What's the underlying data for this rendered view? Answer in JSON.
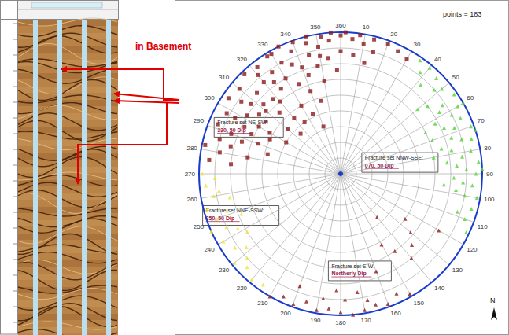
{
  "chart_data": {
    "type": "polar_scatter",
    "points_text": "points = 183",
    "north_label": "N",
    "xlim": [
      0,
      360
    ],
    "xticks": [
      10,
      20,
      30,
      40,
      50,
      60,
      70,
      80,
      90,
      100,
      110,
      120,
      130,
      140,
      150,
      160,
      170,
      180,
      190,
      200,
      210,
      220,
      230,
      240,
      250,
      260,
      270,
      280,
      290,
      300,
      310,
      320,
      330,
      340,
      350,
      360
    ],
    "ylim": [
      0,
      90
    ],
    "yticks": [
      0,
      10,
      20,
      30,
      40,
      50,
      60,
      70,
      80,
      90
    ],
    "grid": true,
    "tick_labels": "x",
    "series": [
      {
        "name": "Fracture set NE-SW:",
        "dip_text": "330, 50 Dip",
        "label_at": [
          294,
          88
        ],
        "color": "#8b1a1a",
        "marker": "square",
        "values": [
          [
            300,
            52
          ],
          [
            305,
            58
          ],
          [
            310,
            62
          ],
          [
            315,
            55
          ],
          [
            320,
            60
          ],
          [
            325,
            66
          ],
          [
            330,
            70
          ],
          [
            335,
            63
          ],
          [
            340,
            72
          ],
          [
            345,
            78
          ],
          [
            350,
            82
          ],
          [
            355,
            85
          ],
          [
            0,
            88
          ],
          [
            5,
            86
          ],
          [
            10,
            84
          ],
          [
            15,
            80
          ],
          [
            20,
            88
          ],
          [
            352,
            88
          ],
          [
            345,
            86
          ],
          [
            338,
            84
          ],
          [
            332,
            80
          ],
          [
            326,
            78
          ],
          [
            320,
            76
          ],
          [
            314,
            74
          ],
          [
            308,
            72
          ],
          [
            302,
            70
          ],
          [
            296,
            68
          ],
          [
            290,
            74
          ],
          [
            286,
            80
          ],
          [
            292,
            84
          ],
          [
            298,
            82
          ],
          [
            304,
            86
          ],
          [
            310,
            84
          ],
          [
            316,
            88
          ],
          [
            322,
            86
          ],
          [
            328,
            88
          ],
          [
            334,
            90
          ],
          [
            340,
            89
          ],
          [
            346,
            90
          ],
          [
            356,
            90
          ],
          [
            2,
            90
          ],
          [
            8,
            89
          ],
          [
            14,
            88
          ],
          [
            25,
            86
          ],
          [
            30,
            84
          ],
          [
            318,
            64
          ],
          [
            312,
            66
          ],
          [
            306,
            64
          ],
          [
            300,
            60
          ],
          [
            294,
            62
          ],
          [
            288,
            66
          ],
          [
            284,
            72
          ],
          [
            280,
            78
          ],
          [
            276,
            84
          ],
          [
            282,
            88
          ],
          [
            298,
            76
          ],
          [
            306,
            78
          ],
          [
            324,
            72
          ],
          [
            336,
            76
          ],
          [
            342,
            66
          ],
          [
            348,
            70
          ],
          [
            354,
            74
          ],
          [
            0,
            78
          ],
          [
            6,
            76
          ],
          [
            12,
            72
          ],
          [
            350,
            60
          ],
          [
            340,
            56
          ],
          [
            330,
            50
          ],
          [
            320,
            46
          ],
          [
            310,
            44
          ],
          [
            296,
            50
          ],
          [
            290,
            56
          ],
          [
            325,
            40
          ],
          [
            335,
            42
          ],
          [
            345,
            48
          ],
          [
            300,
            40
          ],
          [
            315,
            36
          ],
          [
            340,
            32
          ],
          [
            280,
            60
          ],
          [
            285,
            48
          ],
          [
            275,
            70
          ],
          [
            330,
            88
          ],
          [
            350,
            76
          ],
          [
            358,
            66
          ],
          [
            320,
            82
          ]
        ]
      },
      {
        "name": "Fracture set NNW-SSE:",
        "dip_text": "070, 50 Dip",
        "label_at": [
          45,
          19
        ],
        "color": "#55d43a",
        "marker": "triangle",
        "values": [
          [
            40,
            88
          ],
          [
            45,
            86
          ],
          [
            50,
            84
          ],
          [
            55,
            88
          ],
          [
            60,
            86
          ],
          [
            65,
            84
          ],
          [
            70,
            88
          ],
          [
            75,
            86
          ],
          [
            80,
            84
          ],
          [
            85,
            88
          ],
          [
            90,
            86
          ],
          [
            95,
            84
          ],
          [
            100,
            88
          ],
          [
            105,
            86
          ],
          [
            110,
            84
          ],
          [
            48,
            80
          ],
          [
            56,
            78
          ],
          [
            62,
            80
          ],
          [
            68,
            78
          ],
          [
            74,
            80
          ],
          [
            82,
            78
          ],
          [
            88,
            80
          ],
          [
            94,
            78
          ],
          [
            100,
            80
          ],
          [
            58,
            74
          ],
          [
            66,
            72
          ],
          [
            72,
            74
          ],
          [
            78,
            72
          ],
          [
            86,
            74
          ],
          [
            92,
            72
          ],
          [
            52,
            70
          ],
          [
            62,
            68
          ],
          [
            76,
            66
          ],
          [
            84,
            68
          ],
          [
            70,
            62
          ],
          [
            60,
            90
          ],
          [
            72,
            90
          ],
          [
            88,
            90
          ],
          [
            38,
            82
          ],
          [
            42,
            76
          ],
          [
            115,
            88
          ],
          [
            108,
            78
          ],
          [
            98,
            74
          ],
          [
            64,
            60
          ],
          [
            80,
            60
          ],
          [
            50,
            64
          ],
          [
            35,
            88
          ],
          [
            96,
            66
          ]
        ]
      },
      {
        "name": "Fracture set NNE-SSW:",
        "dip_text": "250, 50 Dip",
        "label_at": [
          257,
          90
        ],
        "color": "#efe23a",
        "marker": "triangle",
        "values": [
          [
            220,
            88
          ],
          [
            225,
            84
          ],
          [
            230,
            88
          ],
          [
            235,
            82
          ],
          [
            240,
            86
          ],
          [
            245,
            80
          ],
          [
            250,
            84
          ],
          [
            255,
            88
          ],
          [
            260,
            82
          ],
          [
            265,
            86
          ],
          [
            270,
            88
          ],
          [
            232,
            76
          ],
          [
            242,
            74
          ],
          [
            252,
            76
          ],
          [
            262,
            78
          ],
          [
            238,
            70
          ],
          [
            248,
            68
          ],
          [
            258,
            72
          ],
          [
            228,
            80
          ],
          [
            268,
            80
          ],
          [
            215,
            86
          ],
          [
            246,
            90
          ]
        ]
      },
      {
        "name": "Fracture set E-W:",
        "dip_text": "Northerly Dip",
        "label_at": [
          188,
          56
        ],
        "color": "#8b1a1a",
        "marker": "triangle",
        "values": [
          [
            160,
            88
          ],
          [
            165,
            86
          ],
          [
            170,
            88
          ],
          [
            175,
            90
          ],
          [
            180,
            88
          ],
          [
            185,
            86
          ],
          [
            190,
            88
          ],
          [
            195,
            84
          ],
          [
            200,
            88
          ],
          [
            205,
            86
          ],
          [
            155,
            84
          ],
          [
            150,
            88
          ],
          [
            168,
            82
          ],
          [
            178,
            80
          ],
          [
            188,
            80
          ],
          [
            172,
            76
          ],
          [
            182,
            74
          ],
          [
            140,
            70
          ],
          [
            135,
            64
          ],
          [
            130,
            58
          ],
          [
            145,
            60
          ],
          [
            150,
            52
          ],
          [
            125,
            50
          ],
          [
            160,
            66
          ],
          [
            120,
            72
          ],
          [
            140,
            36
          ],
          [
            200,
            76
          ],
          [
            210,
            90
          ]
        ]
      }
    ]
  },
  "image_log": {
    "label": "in Basement"
  }
}
